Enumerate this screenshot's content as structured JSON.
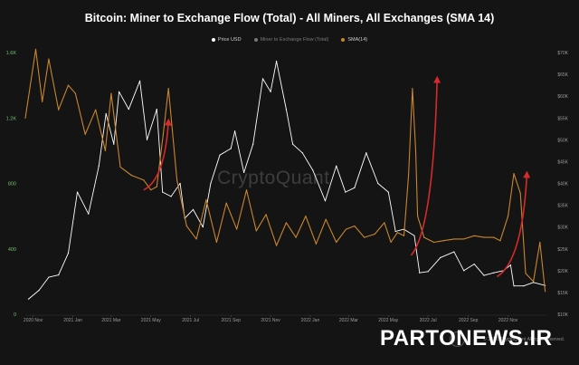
{
  "header": {
    "title": "Bitcoin: Miner to Exchange Flow (Total) - All Miners, All Exchanges (SMA 14)"
  },
  "legend": [
    {
      "label": "Price USD",
      "color": "#ffffff",
      "faded": false
    },
    {
      "label": "Miner to Exchange Flow (Total)",
      "color": "#777777",
      "faded": true
    },
    {
      "label": "SMA(14)",
      "color": "#c8862e",
      "faded": false
    }
  ],
  "watermark": "CryptoQuant",
  "copyright": "© 2022, CryptoQuant All rights reserved.",
  "brand_overlay": "PARTONEWS.IR",
  "chart_data": {
    "type": "line",
    "title": "Bitcoin: Miner to Exchange Flow (Total) - All Miners, All Exchanges (SMA 14)",
    "x_range": [
      "2020-10-20",
      "2022-12-30"
    ],
    "x_ticks": [
      "2020 Nov",
      "2021 Jan",
      "2021 Mar",
      "2021 May",
      "2021 Jul",
      "2021 Sep",
      "2021 Nov",
      "2022 Jan",
      "2022 Mar",
      "2022 May",
      "2022 Jul",
      "2022 Sep",
      "2022 Nov"
    ],
    "y_left": {
      "ticks": [
        "0",
        "400",
        "800",
        "1.2K",
        "1.6K"
      ],
      "ylim": [
        0,
        1600
      ],
      "color": "#6fbf6f"
    },
    "y_right": {
      "ticks": [
        "$10K",
        "$15K",
        "$20K",
        "$25K",
        "$30K",
        "$35K",
        "$40K",
        "$45K",
        "$50K",
        "$55K",
        "$60K",
        "$65K",
        "$70K"
      ],
      "ylim": [
        10000,
        70000
      ],
      "color": "#9a9a9a"
    },
    "grid": false,
    "legend_position": "top-center",
    "series": [
      {
        "name": "Price USD",
        "axis": "right",
        "color": "#ffffff",
        "x": [
          "2020-10-25",
          "2020-11-10",
          "2020-11-25",
          "2020-12-10",
          "2020-12-25",
          "2021-01-08",
          "2021-01-25",
          "2021-02-10",
          "2021-02-21",
          "2021-03-05",
          "2021-03-13",
          "2021-03-28",
          "2021-04-14",
          "2021-04-25",
          "2021-05-10",
          "2021-05-19",
          "2021-06-01",
          "2021-06-15",
          "2021-06-22",
          "2021-07-05",
          "2021-07-20",
          "2021-08-01",
          "2021-08-15",
          "2021-09-01",
          "2021-09-07",
          "2021-09-21",
          "2021-10-05",
          "2021-10-20",
          "2021-11-01",
          "2021-11-10",
          "2021-11-25",
          "2021-12-05",
          "2021-12-20",
          "2022-01-05",
          "2022-01-24",
          "2022-02-10",
          "2022-02-24",
          "2022-03-10",
          "2022-03-28",
          "2022-04-15",
          "2022-05-01",
          "2022-05-12",
          "2022-05-25",
          "2022-06-10",
          "2022-06-18",
          "2022-07-01",
          "2022-07-20",
          "2022-08-10",
          "2022-08-25",
          "2022-09-10",
          "2022-09-25",
          "2022-10-10",
          "2022-10-25",
          "2022-11-05",
          "2022-11-10",
          "2022-11-25",
          "2022-12-10",
          "2022-12-28"
        ],
        "y": [
          13500,
          15500,
          18500,
          19000,
          24000,
          38000,
          33000,
          44000,
          56000,
          49000,
          61000,
          57000,
          63500,
          50000,
          57000,
          38000,
          37000,
          40000,
          32000,
          34000,
          30000,
          40000,
          46500,
          48000,
          52000,
          42500,
          49000,
          64000,
          61000,
          68000,
          57000,
          49000,
          47000,
          43000,
          36000,
          44000,
          38000,
          39000,
          47000,
          40000,
          38000,
          29000,
          29500,
          28000,
          19500,
          19800,
          23000,
          24300,
          20000,
          21500,
          18900,
          19500,
          20000,
          21300,
          16500,
          16500,
          17300,
          16600
        ]
      },
      {
        "name": "SMA(14)",
        "axis": "left",
        "color": "#c8862e",
        "x": [
          "2020-10-20",
          "2020-11-05",
          "2020-11-15",
          "2020-11-25",
          "2020-12-10",
          "2020-12-25",
          "2021-01-05",
          "2021-01-20",
          "2021-02-05",
          "2021-02-20",
          "2021-03-01",
          "2021-03-15",
          "2021-04-01",
          "2021-04-20",
          "2021-05-01",
          "2021-05-10",
          "2021-05-20",
          "2021-05-28",
          "2021-06-10",
          "2021-06-25",
          "2021-07-10",
          "2021-07-25",
          "2021-08-10",
          "2021-08-25",
          "2021-09-10",
          "2021-09-25",
          "2021-10-10",
          "2021-10-25",
          "2021-11-10",
          "2021-11-25",
          "2021-12-10",
          "2021-12-25",
          "2022-01-10",
          "2022-01-25",
          "2022-02-10",
          "2022-02-25",
          "2022-03-10",
          "2022-03-25",
          "2022-04-10",
          "2022-04-25",
          "2022-05-05",
          "2022-05-15",
          "2022-05-25",
          "2022-06-01",
          "2022-06-07",
          "2022-06-12",
          "2022-06-15",
          "2022-06-25",
          "2022-07-10",
          "2022-07-25",
          "2022-08-10",
          "2022-08-25",
          "2022-09-10",
          "2022-09-25",
          "2022-10-10",
          "2022-10-20",
          "2022-11-01",
          "2022-11-10",
          "2022-11-20",
          "2022-11-28",
          "2022-12-10",
          "2022-12-20",
          "2022-12-28"
        ],
        "y": [
          1200,
          1620,
          1300,
          1560,
          1250,
          1400,
          1350,
          1100,
          1250,
          1000,
          1350,
          900,
          850,
          820,
          760,
          780,
          1100,
          1380,
          820,
          540,
          460,
          700,
          440,
          680,
          520,
          760,
          510,
          610,
          420,
          560,
          470,
          600,
          430,
          580,
          440,
          520,
          540,
          470,
          490,
          560,
          440,
          500,
          480,
          850,
          1380,
          1000,
          600,
          470,
          440,
          450,
          460,
          460,
          480,
          470,
          470,
          450,
          600,
          860,
          740,
          250,
          200,
          440,
          140
        ]
      }
    ],
    "annotations": [
      {
        "type": "arrow",
        "color": "#d62b2b",
        "from": [
          "2021-04-20",
          760
        ],
        "to": [
          "2021-05-28",
          1180
        ]
      },
      {
        "type": "arrow",
        "color": "#d62b2b",
        "from": [
          "2022-06-05",
          360
        ],
        "to": [
          "2022-07-15",
          1440
        ]
      },
      {
        "type": "arrow",
        "color": "#d62b2b",
        "from": [
          "2022-10-15",
          230
        ],
        "to": [
          "2022-11-30",
          860
        ]
      }
    ]
  }
}
